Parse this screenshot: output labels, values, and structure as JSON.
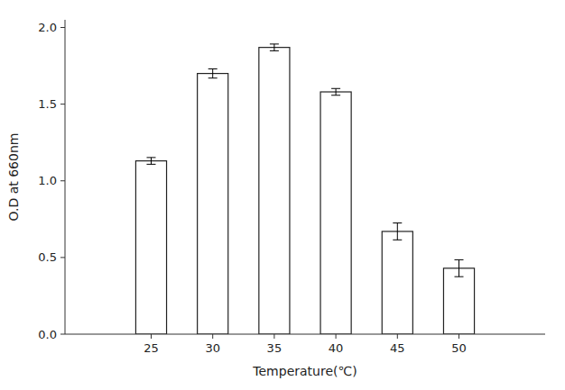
{
  "chart_data": {
    "type": "bar",
    "x": [
      25,
      30,
      35,
      40,
      45,
      50
    ],
    "values": [
      1.13,
      1.7,
      1.87,
      1.58,
      0.67,
      0.43
    ],
    "errors": [
      0.022,
      0.03,
      0.022,
      0.022,
      0.055,
      0.055
    ],
    "color": "#ffffff",
    "xlabel": "Temperature(℃)",
    "ylabel": "O.D at 660nm",
    "xlim": [
      18,
      57
    ],
    "xticks": [
      25,
      30,
      35,
      40,
      45,
      50
    ],
    "ylim": [
      0.0,
      2.05
    ],
    "yticks": [
      {
        "value": 0.0,
        "label": "0.0"
      },
      {
        "value": 0.5,
        "label": "0.5"
      },
      {
        "value": 1.0,
        "label": "1.0"
      },
      {
        "value": 1.5,
        "label": "1.5"
      },
      {
        "value": 2.0,
        "label": "2.0"
      }
    ],
    "grid": false
  }
}
